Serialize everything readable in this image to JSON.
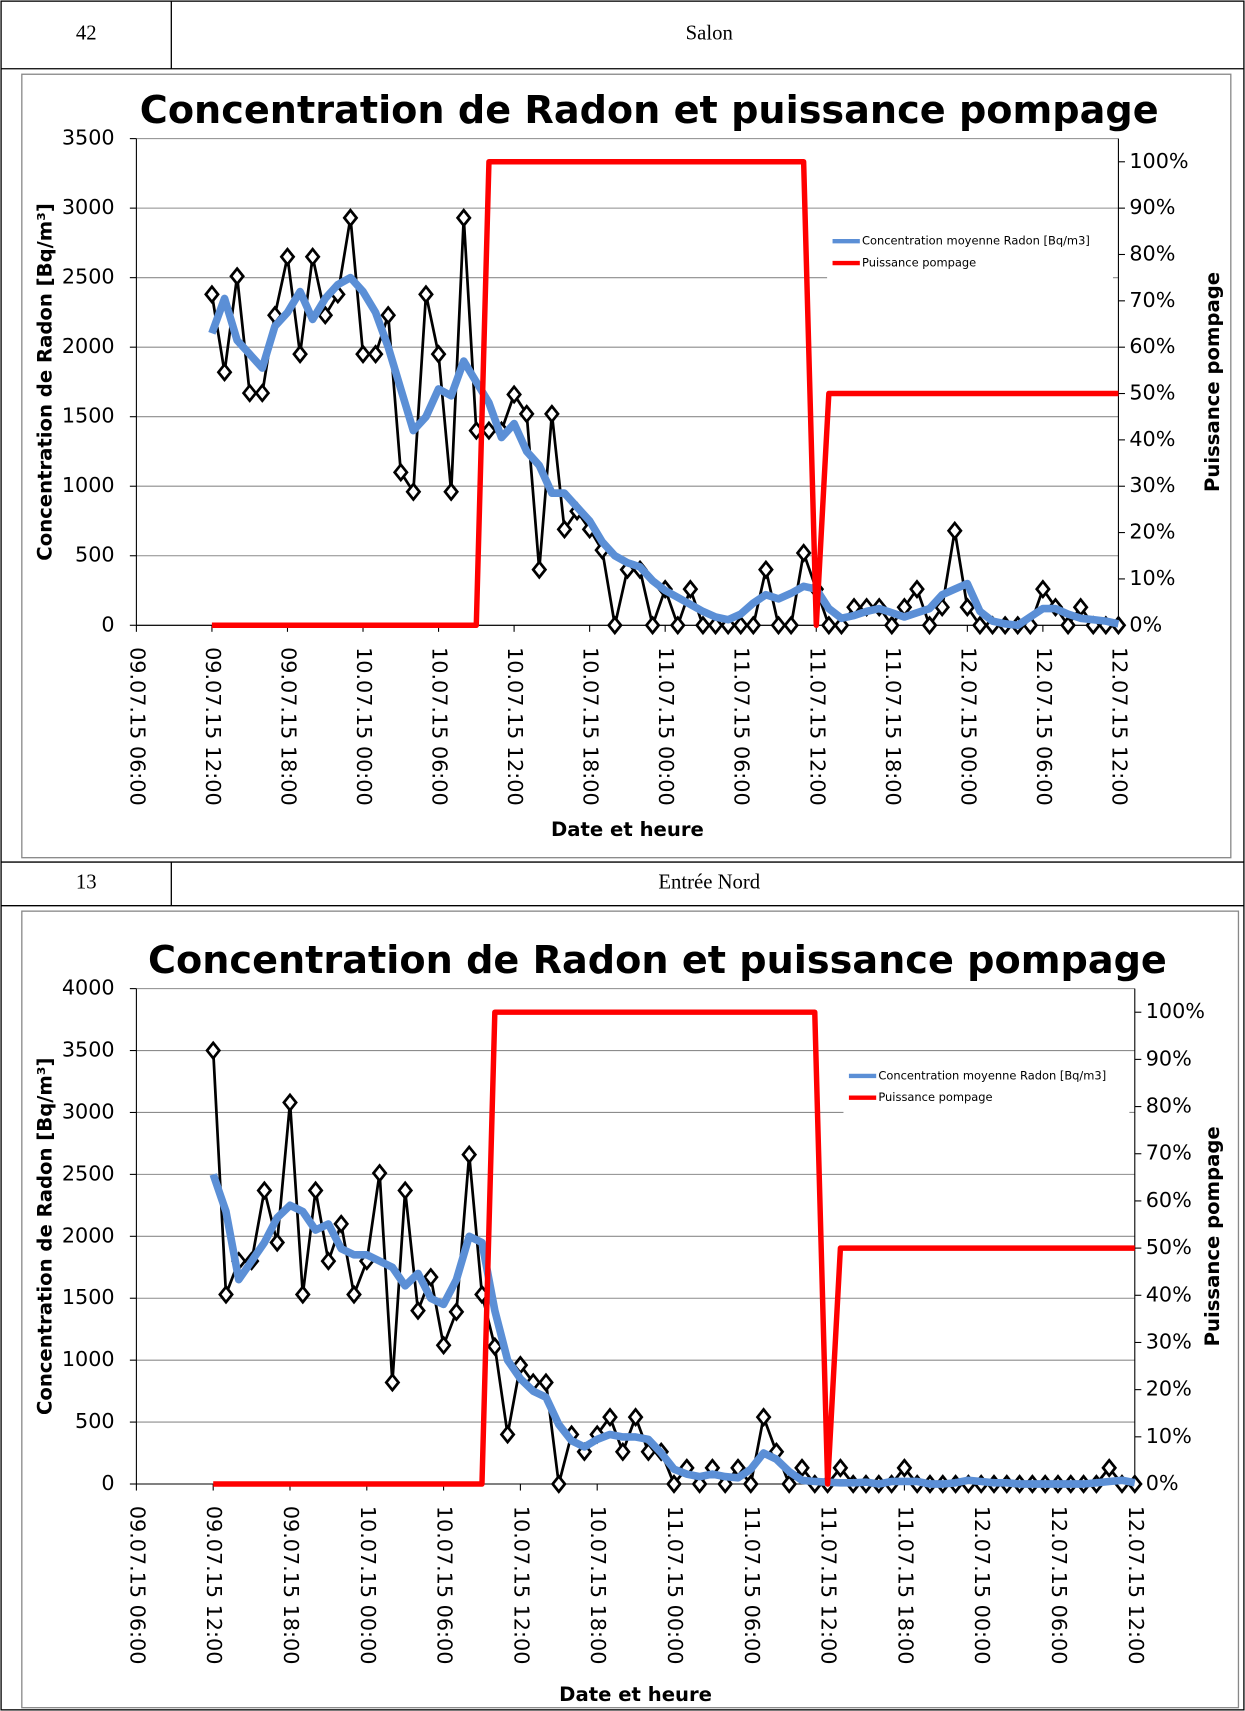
{
  "table": {
    "rows": [
      [
        "42",
        "Salon"
      ],
      [
        "13",
        "Entrée Nord"
      ]
    ]
  },
  "chart_data": [
    {
      "type": "line",
      "title": "Concentration de Radon et puissance pompage",
      "x_label": "Date et heure",
      "y_label": "Concentration de Radon  [Bq/m³]",
      "y2_label": "Puissance pompage",
      "xlim": [
        "09.07.15 06:00",
        "12.07.15 12:00"
      ],
      "xticks": [
        "09.07.15 06:00",
        "09.07.15 12:00",
        "09.07.15 18:00",
        "10.07.15 00:00",
        "10.07.15 06:00",
        "10.07.15 12:00",
        "10.07.15 18:00",
        "11.07.15 00:00",
        "11.07.15 06:00",
        "11.07.15 12:00",
        "11.07.15 18:00",
        "12.07.15 00:00",
        "12.07.15 06:00",
        "12.07.15 12:00"
      ],
      "ylim": [
        0,
        3500
      ],
      "yticks": [
        0,
        500,
        1000,
        1500,
        2000,
        2500,
        3000,
        3500
      ],
      "y2lim": [
        0,
        105
      ],
      "y2ticks": [
        {
          "value": 0,
          "label": "0%"
        },
        {
          "value": 10,
          "label": "10%"
        },
        {
          "value": 20,
          "label": "20%"
        },
        {
          "value": 30,
          "label": "30%"
        },
        {
          "value": 40,
          "label": "40%"
        },
        {
          "value": 50,
          "label": "50%"
        },
        {
          "value": 60,
          "label": "60%"
        },
        {
          "value": 70,
          "label": "70%"
        },
        {
          "value": 80,
          "label": "80%"
        },
        {
          "value": 90,
          "label": "90%"
        },
        {
          "value": 100,
          "label": "100%"
        }
      ],
      "grid": true,
      "legend": "upper right",
      "x": [
        "09.07.15 12:00",
        "09.07.15 13:00",
        "09.07.15 14:00",
        "09.07.15 15:00",
        "09.07.15 16:00",
        "09.07.15 17:00",
        "09.07.15 18:00",
        "09.07.15 19:00",
        "09.07.15 20:00",
        "09.07.15 21:00",
        "09.07.15 22:00",
        "09.07.15 23:00",
        "10.07.15 00:00",
        "10.07.15 01:00",
        "10.07.15 02:00",
        "10.07.15 03:00",
        "10.07.15 04:00",
        "10.07.15 05:00",
        "10.07.15 06:00",
        "10.07.15 07:00",
        "10.07.15 08:00",
        "10.07.15 09:00",
        "10.07.15 10:00",
        "10.07.15 11:00",
        "10.07.15 12:00",
        "10.07.15 13:00",
        "10.07.15 14:00",
        "10.07.15 15:00",
        "10.07.15 16:00",
        "10.07.15 17:00",
        "10.07.15 18:00",
        "10.07.15 19:00",
        "10.07.15 20:00",
        "10.07.15 21:00",
        "10.07.15 22:00",
        "10.07.15 23:00",
        "11.07.15 00:00",
        "11.07.15 01:00",
        "11.07.15 02:00",
        "11.07.15 03:00",
        "11.07.15 04:00",
        "11.07.15 05:00",
        "11.07.15 06:00",
        "11.07.15 07:00",
        "11.07.15 08:00",
        "11.07.15 09:00",
        "11.07.15 10:00",
        "11.07.15 11:00",
        "11.07.15 12:00",
        "11.07.15 13:00",
        "11.07.15 14:00",
        "11.07.15 15:00",
        "11.07.15 16:00",
        "11.07.15 17:00",
        "11.07.15 18:00",
        "11.07.15 19:00",
        "11.07.15 20:00",
        "11.07.15 21:00",
        "11.07.15 22:00",
        "11.07.15 23:00",
        "12.07.15 00:00",
        "12.07.15 01:00",
        "12.07.15 02:00",
        "12.07.15 03:00",
        "12.07.15 04:00",
        "12.07.15 05:00",
        "12.07.15 06:00",
        "12.07.15 07:00",
        "12.07.15 08:00",
        "12.07.15 09:00",
        "12.07.15 10:00",
        "12.07.15 11:00",
        "12.07.15 12:00"
      ],
      "series": [
        {
          "color": "#000000",
          "marker": "diamond",
          "values": [
            2380,
            1820,
            2510,
            1670,
            1670,
            2230,
            2650,
            1950,
            2650,
            2230,
            2380,
            2930,
            1950,
            1950,
            2230,
            1100,
            960,
            2380,
            1950,
            960,
            2930,
            1400,
            1400,
            1400,
            1660,
            1520,
            400,
            1520,
            690,
            820,
            690,
            540,
            0,
            400,
            400,
            0,
            260,
            0,
            260,
            0,
            0,
            0,
            0,
            0,
            400,
            0,
            0,
            520,
            260,
            0,
            0,
            130,
            130,
            130,
            0,
            130,
            260,
            0,
            130,
            680,
            130,
            0,
            0,
            0,
            0,
            0,
            260,
            130,
            0,
            130,
            0,
            0,
            0
          ]
        },
        {
          "name": "Concentration moyenne Radon [Bq/m3]",
          "color": "#5b8fd6",
          "values": [
            2100,
            2350,
            2050,
            1950,
            1850,
            2150,
            2250,
            2400,
            2200,
            2350,
            2450,
            2500,
            2400,
            2250,
            2000,
            1700,
            1400,
            1500,
            1700,
            1650,
            1900,
            1750,
            1600,
            1350,
            1450,
            1250,
            1150,
            950,
            950,
            850,
            750,
            600,
            500,
            450,
            420,
            320,
            250,
            200,
            150,
            100,
            60,
            40,
            80,
            160,
            220,
            190,
            230,
            280,
            260,
            120,
            50,
            70,
            100,
            120,
            90,
            60,
            90,
            120,
            220,
            260,
            300,
            100,
            30,
            10,
            0,
            60,
            120,
            120,
            80,
            50,
            40,
            30,
            10
          ]
        },
        {
          "name": "Puissance pompage",
          "color": "#ff0000",
          "axis": "y2",
          "x": [
            "09.07.15 12:00",
            "10.07.15 09:00",
            "10.07.15 10:00",
            "11.07.15 11:00",
            "11.07.15 12:00",
            "11.07.15 13:00",
            "12.07.15 12:00"
          ],
          "values": [
            0,
            0,
            100,
            100,
            0,
            50,
            50
          ]
        }
      ]
    },
    {
      "type": "line",
      "title": "Concentration de Radon et puissance pompage",
      "x_label": "Date et heure",
      "y_label": "Concentration de Radon  [Bq/m³]",
      "y2_label": "Puissance pompage",
      "xlim": [
        "09.07.15 06:00",
        "12.07.15 12:00"
      ],
      "xticks": [
        "09.07.15 06:00",
        "09.07.15 12:00",
        "09.07.15 18:00",
        "10.07.15 00:00",
        "10.07.15 06:00",
        "10.07.15 12:00",
        "10.07.15 18:00",
        "11.07.15 00:00",
        "11.07.15 06:00",
        "11.07.15 12:00",
        "11.07.15 18:00",
        "12.07.15 00:00",
        "12.07.15 06:00",
        "12.07.15 12:00"
      ],
      "ylim": [
        0,
        4000
      ],
      "yticks": [
        0,
        500,
        1000,
        1500,
        2000,
        2500,
        3000,
        3500,
        4000
      ],
      "y2lim": [
        0,
        105
      ],
      "y2ticks": [
        {
          "value": 0,
          "label": "0%"
        },
        {
          "value": 10,
          "label": "10%"
        },
        {
          "value": 20,
          "label": "20%"
        },
        {
          "value": 30,
          "label": "30%"
        },
        {
          "value": 40,
          "label": "40%"
        },
        {
          "value": 50,
          "label": "50%"
        },
        {
          "value": 60,
          "label": "60%"
        },
        {
          "value": 70,
          "label": "70%"
        },
        {
          "value": 80,
          "label": "80%"
        },
        {
          "value": 90,
          "label": "90%"
        },
        {
          "value": 100,
          "label": "100%"
        }
      ],
      "grid": true,
      "legend": "upper right",
      "x": [
        "09.07.15 12:00",
        "09.07.15 13:00",
        "09.07.15 14:00",
        "09.07.15 15:00",
        "09.07.15 16:00",
        "09.07.15 17:00",
        "09.07.15 18:00",
        "09.07.15 19:00",
        "09.07.15 20:00",
        "09.07.15 21:00",
        "09.07.15 22:00",
        "09.07.15 23:00",
        "10.07.15 00:00",
        "10.07.15 01:00",
        "10.07.15 02:00",
        "10.07.15 03:00",
        "10.07.15 04:00",
        "10.07.15 05:00",
        "10.07.15 06:00",
        "10.07.15 07:00",
        "10.07.15 08:00",
        "10.07.15 09:00",
        "10.07.15 10:00",
        "10.07.15 11:00",
        "10.07.15 12:00",
        "10.07.15 13:00",
        "10.07.15 14:00",
        "10.07.15 15:00",
        "10.07.15 16:00",
        "10.07.15 17:00",
        "10.07.15 18:00",
        "10.07.15 19:00",
        "10.07.15 20:00",
        "10.07.15 21:00",
        "10.07.15 22:00",
        "10.07.15 23:00",
        "11.07.15 00:00",
        "11.07.15 01:00",
        "11.07.15 02:00",
        "11.07.15 03:00",
        "11.07.15 04:00",
        "11.07.15 05:00",
        "11.07.15 06:00",
        "11.07.15 07:00",
        "11.07.15 08:00",
        "11.07.15 09:00",
        "11.07.15 10:00",
        "11.07.15 11:00",
        "11.07.15 12:00",
        "11.07.15 13:00",
        "11.07.15 14:00",
        "11.07.15 15:00",
        "11.07.15 16:00",
        "11.07.15 17:00",
        "11.07.15 18:00",
        "11.07.15 19:00",
        "11.07.15 20:00",
        "11.07.15 21:00",
        "11.07.15 22:00",
        "11.07.15 23:00",
        "12.07.15 00:00",
        "12.07.15 01:00",
        "12.07.15 02:00",
        "12.07.15 03:00",
        "12.07.15 04:00",
        "12.07.15 05:00",
        "12.07.15 06:00",
        "12.07.15 07:00",
        "12.07.15 08:00",
        "12.07.15 09:00",
        "12.07.15 10:00",
        "12.07.15 11:00",
        "12.07.15 12:00"
      ],
      "series": [
        {
          "color": "#000000",
          "marker": "diamond",
          "values": [
            3500,
            1530,
            1800,
            1800,
            2370,
            1950,
            3080,
            1530,
            2370,
            1800,
            2100,
            1530,
            1800,
            2510,
            820,
            2370,
            1400,
            1670,
            1120,
            1390,
            2660,
            1530,
            1110,
            400,
            960,
            820,
            820,
            0,
            400,
            260,
            400,
            540,
            260,
            540,
            260,
            260,
            0,
            130,
            0,
            130,
            0,
            130,
            0,
            540,
            260,
            0,
            130,
            0,
            0,
            130,
            0,
            0,
            0,
            0,
            130,
            0,
            0,
            0,
            0,
            0,
            0,
            0,
            0,
            0,
            0,
            0,
            0,
            0,
            0,
            0,
            130,
            0,
            0
          ]
        },
        {
          "name": "Concentration moyenne Radon [Bq/m3]",
          "color": "#5b8fd6",
          "values": [
            2500,
            2200,
            1650,
            1800,
            1950,
            2150,
            2250,
            2200,
            2050,
            2100,
            1900,
            1850,
            1850,
            1800,
            1750,
            1600,
            1700,
            1500,
            1450,
            1650,
            2000,
            1950,
            1400,
            1000,
            850,
            750,
            700,
            480,
            350,
            300,
            360,
            400,
            380,
            380,
            360,
            250,
            120,
            80,
            60,
            80,
            60,
            50,
            120,
            250,
            200,
            100,
            30,
            20,
            15,
            10,
            10,
            15,
            0,
            20,
            20,
            20,
            0,
            0,
            10,
            30,
            20,
            10,
            10,
            0,
            0,
            0,
            0,
            0,
            0,
            10,
            20,
            30,
            10
          ]
        },
        {
          "name": "Puissance pompage",
          "color": "#ff0000",
          "axis": "y2",
          "x": [
            "09.07.15 12:00",
            "10.07.15 09:00",
            "10.07.15 10:00",
            "11.07.15 11:00",
            "11.07.15 12:00",
            "11.07.15 13:00",
            "12.07.15 12:00"
          ],
          "values": [
            0,
            0,
            100,
            100,
            0,
            50,
            50
          ]
        }
      ]
    }
  ]
}
